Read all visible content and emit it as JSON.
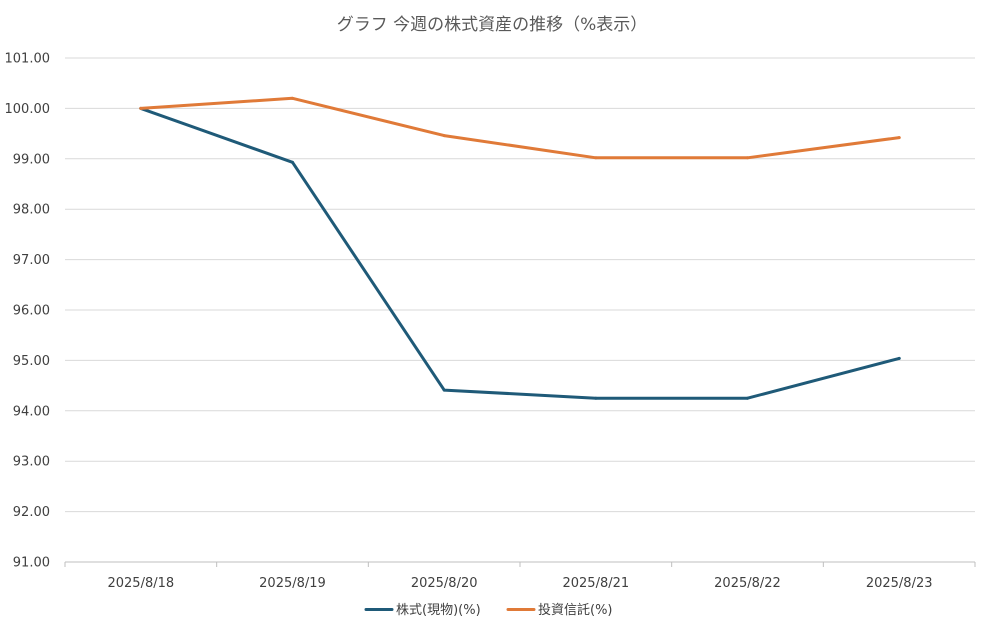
{
  "chart_data": {
    "type": "line",
    "title": "グラフ 今週の株式資産の推移（%表示）",
    "categories": [
      "2025/8/18",
      "2025/8/19",
      "2025/8/20",
      "2025/8/21",
      "2025/8/22",
      "2025/8/23"
    ],
    "series": [
      {
        "name": "株式(現物)(%)",
        "color": "#1f5a78",
        "values": [
          100.0,
          98.93,
          94.41,
          94.25,
          94.25,
          95.04
        ]
      },
      {
        "name": "投資信託(%)",
        "color": "#e07a38",
        "values": [
          100.0,
          100.2,
          99.46,
          99.02,
          99.02,
          99.42
        ]
      }
    ],
    "ylim": [
      91.0,
      101.0
    ],
    "yticks": [
      "101.00",
      "100.00",
      "99.00",
      "98.00",
      "97.00",
      "96.00",
      "95.00",
      "94.00",
      "93.00",
      "92.00",
      "91.00"
    ],
    "grid": true,
    "legend_position": "bottom"
  }
}
